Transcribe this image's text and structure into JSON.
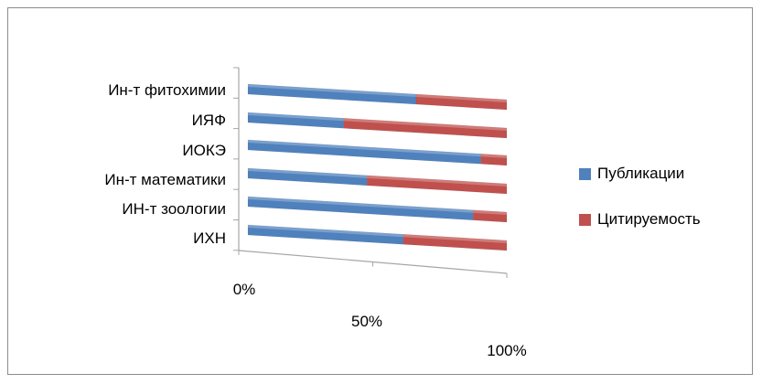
{
  "chart_data": {
    "type": "bar",
    "stacked": "percent",
    "orientation": "horizontal",
    "projection": "3d-perspective",
    "categories": [
      "Ин-т  фитохимии",
      "ИЯФ",
      "ИОКЭ",
      "Ин-т математики",
      "ИН-т зоологии",
      "ИХН"
    ],
    "series": [
      {
        "name": "Публикации",
        "color": "#4f81bd",
        "values": [
          65,
          37,
          90,
          46,
          87,
          60
        ]
      },
      {
        "name": "Цитируемость",
        "color": "#c0504d",
        "values": [
          35,
          63,
          10,
          54,
          13,
          40
        ]
      }
    ],
    "x_ticks": [
      "0%",
      "50%",
      "100%"
    ],
    "xlim": [
      0,
      100
    ],
    "legend_position": "right",
    "grid": false
  }
}
